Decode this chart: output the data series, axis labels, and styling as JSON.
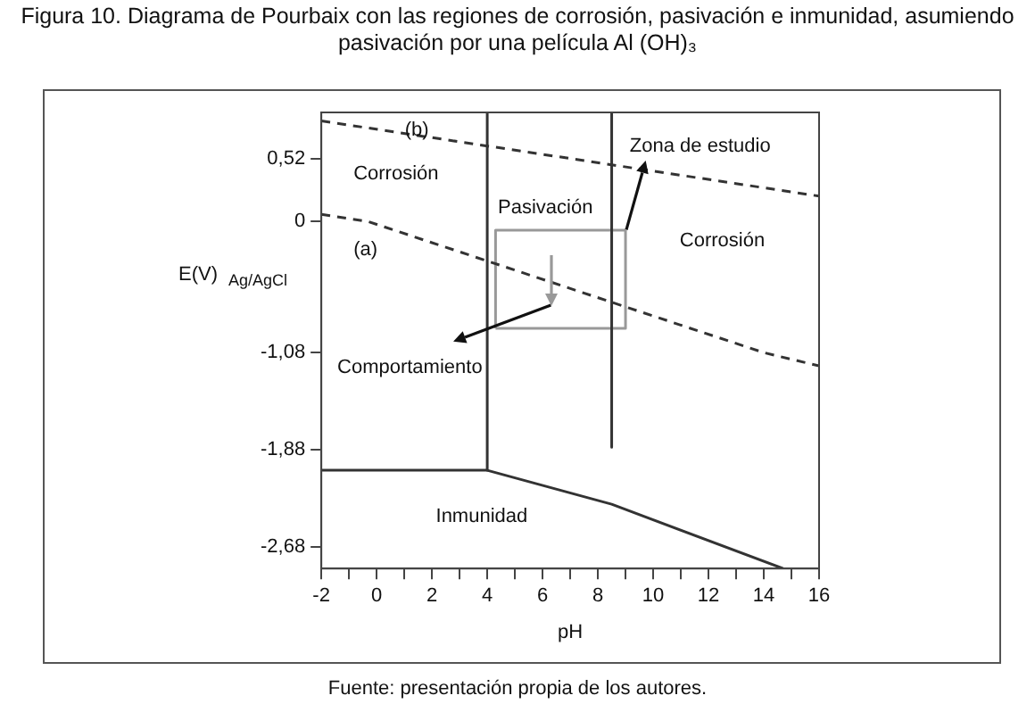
{
  "chart_data": {
    "type": "line",
    "title": "Figura 10. Diagrama de Pourbaix con las regiones de corrosión, pasivación e inmunidad, asumiendo pasivación por una película Al (OH)₃",
    "xlabel": "pH",
    "ylabel": "E(V)$_{Ag/AgCl}$",
    "xlim": [
      -2,
      16
    ],
    "ylim": [
      -2.86,
      0.9
    ],
    "xticks": [
      -2,
      {
        "value": -1,
        "label": null
      },
      0,
      {
        "value": 1,
        "label": null
      },
      2,
      {
        "value": 3,
        "label": null
      },
      4,
      {
        "value": 5,
        "label": null
      },
      6,
      {
        "value": 7,
        "label": null
      },
      8,
      {
        "value": 9,
        "label": null
      },
      10,
      {
        "value": 11,
        "label": null
      },
      12,
      {
        "value": 13,
        "label": null
      },
      14,
      {
        "value": 15,
        "label": null
      },
      16
    ],
    "yticks": [
      {
        "value": 0.52,
        "label": "0,52"
      },
      0,
      {
        "value": -1.08,
        "label": "-1,08"
      },
      {
        "value": -1.88,
        "label": "-1,88"
      },
      {
        "value": -2.68,
        "label": "-2,68"
      }
    ],
    "grid": false,
    "marker": "none",
    "series": [
      {
        "color": "#333333",
        "line_style": "dashed",
        "x": [
          -2,
          16
        ],
        "values": [
          0.83,
          0.21
        ]
      },
      {
        "color": "#333333",
        "line_style": "dashed",
        "x": [
          -2,
          -0.3,
          14,
          16
        ],
        "values": [
          0.06,
          0,
          -1.08,
          -1.19
        ]
      },
      {
        "color": "#333333",
        "line_style": "solid",
        "x": [
          4,
          4
        ],
        "values": [
          0.9,
          -2.05
        ]
      },
      {
        "color": "#333333",
        "line_style": "solid",
        "x": [
          -2,
          4,
          8.5,
          14.7
        ],
        "values": [
          -2.05,
          -2.05,
          -2.33,
          -2.86
        ]
      },
      {
        "color": "#333333",
        "line_style": "solid",
        "x": [
          8.5,
          8.5
        ],
        "values": [
          0.9,
          -1.86
        ]
      },
      {
        "color": "#999999",
        "line_style": "solid",
        "x": [
          4.3,
          4.3,
          9
        ],
        "values": [
          -0.88,
          -0.07,
          -0.07
        ]
      },
      {
        "color": "#999999",
        "line_style": "solid",
        "x": [
          4.3,
          9,
          9
        ],
        "values": [
          -0.88,
          -0.88,
          -0.07
        ]
      }
    ],
    "annotations": [
      "(b)",
      "Corrosión",
      "(a)",
      "Pasivación",
      "Corrosión",
      {
        "text": "Zona de estudio",
        "x": 9,
        "y": -0.07
      },
      "Comportamiento",
      "Inmunidad",
      "Fuente: presentación propia de los autores."
    ]
  }
}
